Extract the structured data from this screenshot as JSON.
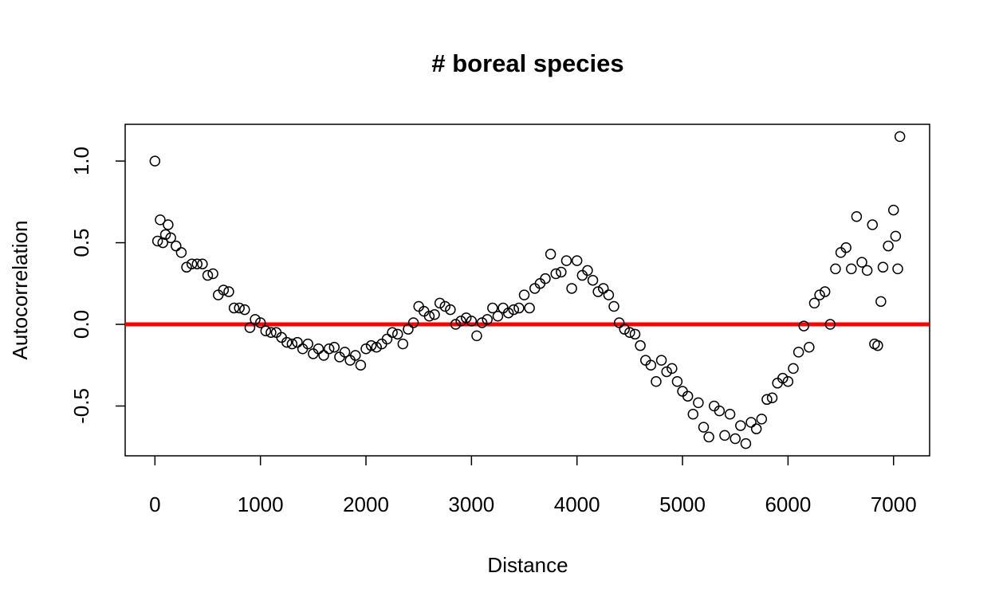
{
  "chart_data": {
    "type": "scatter",
    "title": "# boreal species",
    "xlabel": "Distance",
    "ylabel": "Autocorrelation",
    "x": [
      0,
      25,
      50,
      75,
      100,
      125,
      150,
      200,
      250,
      300,
      350,
      400,
      450,
      500,
      550,
      600,
      650,
      700,
      750,
      800,
      850,
      900,
      950,
      1000,
      1050,
      1100,
      1150,
      1200,
      1250,
      1300,
      1350,
      1400,
      1450,
      1500,
      1550,
      1600,
      1650,
      1700,
      1750,
      1800,
      1850,
      1900,
      1950,
      2000,
      2050,
      2100,
      2150,
      2200,
      2250,
      2300,
      2350,
      2400,
      2450,
      2500,
      2550,
      2600,
      2650,
      2700,
      2750,
      2800,
      2850,
      2900,
      2950,
      3000,
      3050,
      3100,
      3150,
      3200,
      3250,
      3300,
      3350,
      3400,
      3450,
      3500,
      3550,
      3600,
      3650,
      3700,
      3750,
      3800,
      3850,
      3900,
      3950,
      4000,
      4050,
      4100,
      4150,
      4200,
      4250,
      4300,
      4350,
      4400,
      4450,
      4500,
      4550,
      4600,
      4650,
      4700,
      4750,
      4800,
      4850,
      4900,
      4950,
      5000,
      5050,
      5100,
      5150,
      5200,
      5250,
      5300,
      5350,
      5400,
      5450,
      5500,
      5550,
      5600,
      5650,
      5700,
      5750,
      5800,
      5850,
      5900,
      5950,
      6000,
      6050,
      6100,
      6150,
      6200,
      6250,
      6300,
      6350,
      6400,
      6450,
      6500,
      6550,
      6600,
      6650,
      6700,
      6750,
      6800,
      6820,
      6850,
      6880,
      6900,
      6950,
      7000,
      7020,
      7040,
      7060
    ],
    "values": [
      1.0,
      0.51,
      0.64,
      0.5,
      0.55,
      0.61,
      0.53,
      0.48,
      0.44,
      0.35,
      0.37,
      0.37,
      0.37,
      0.3,
      0.31,
      0.18,
      0.21,
      0.2,
      0.1,
      0.1,
      0.09,
      -0.02,
      0.03,
      0.01,
      -0.04,
      -0.05,
      -0.05,
      -0.08,
      -0.11,
      -0.12,
      -0.11,
      -0.15,
      -0.12,
      -0.18,
      -0.15,
      -0.19,
      -0.15,
      -0.14,
      -0.2,
      -0.17,
      -0.22,
      -0.19,
      -0.25,
      -0.15,
      -0.13,
      -0.14,
      -0.12,
      -0.09,
      -0.05,
      -0.06,
      -0.12,
      -0.03,
      0.01,
      0.11,
      0.08,
      0.05,
      0.06,
      0.13,
      0.11,
      0.09,
      0.0,
      0.02,
      0.04,
      0.02,
      -0.07,
      0.01,
      0.03,
      0.1,
      0.05,
      0.1,
      0.07,
      0.09,
      0.1,
      0.18,
      0.1,
      0.22,
      0.25,
      0.28,
      0.43,
      0.31,
      0.32,
      0.39,
      0.22,
      0.39,
      0.3,
      0.33,
      0.27,
      0.2,
      0.22,
      0.18,
      0.11,
      0.01,
      -0.03,
      -0.05,
      -0.06,
      -0.13,
      -0.22,
      -0.25,
      -0.35,
      -0.22,
      -0.29,
      -0.27,
      -0.35,
      -0.41,
      -0.44,
      -0.55,
      -0.48,
      -0.63,
      -0.69,
      -0.5,
      -0.53,
      -0.68,
      -0.55,
      -0.7,
      -0.62,
      -0.73,
      -0.6,
      -0.64,
      -0.58,
      -0.46,
      -0.45,
      -0.36,
      -0.33,
      -0.35,
      -0.27,
      -0.17,
      -0.01,
      -0.14,
      0.13,
      0.18,
      0.2,
      0.0,
      0.34,
      0.44,
      0.47,
      0.34,
      0.66,
      0.38,
      0.33,
      0.61,
      -0.12,
      -0.13,
      0.14,
      0.35,
      0.48,
      0.7,
      0.54,
      0.34,
      1.15
    ],
    "xlim": [
      -282,
      7342
    ],
    "ylim": [
      -0.805,
      1.225
    ],
    "xticks": [
      0,
      1000,
      2000,
      3000,
      4000,
      5000,
      6000,
      7000
    ],
    "yticks": [
      {
        "value": -0.5,
        "label": "-0.5"
      },
      {
        "value": 0,
        "label": "0.0"
      },
      {
        "value": 0.5,
        "label": "0.5"
      },
      {
        "value": 1,
        "label": "1.0"
      }
    ],
    "color": "#000000",
    "reference_line": {
      "value": 0,
      "color": "#ff0000"
    }
  }
}
